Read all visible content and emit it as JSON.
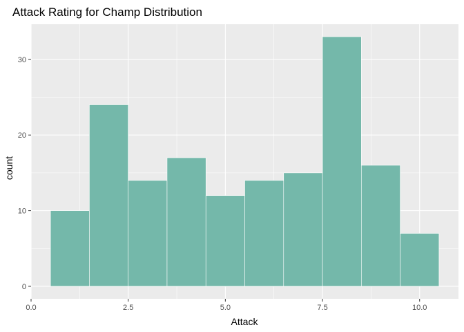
{
  "chart_data": {
    "type": "bar",
    "subtype": "histogram",
    "title": "Attack Rating for Champ Distribution",
    "xlabel": "Attack",
    "ylabel": "count",
    "bins": [
      {
        "x0": 0.5,
        "x1": 1.5,
        "count": 10
      },
      {
        "x0": 1.5,
        "x1": 2.5,
        "count": 24
      },
      {
        "x0": 2.5,
        "x1": 3.5,
        "count": 14
      },
      {
        "x0": 3.5,
        "x1": 4.5,
        "count": 17
      },
      {
        "x0": 4.5,
        "x1": 5.5,
        "count": 12
      },
      {
        "x0": 5.5,
        "x1": 6.5,
        "count": 14
      },
      {
        "x0": 6.5,
        "x1": 7.5,
        "count": 15
      },
      {
        "x0": 7.5,
        "x1": 8.5,
        "count": 33
      },
      {
        "x0": 8.5,
        "x1": 9.5,
        "count": 16
      },
      {
        "x0": 9.5,
        "x1": 10.5,
        "count": 7
      }
    ],
    "xlim": [
      0.0,
      11.0
    ],
    "ylim": [
      -1.65,
      34.65
    ],
    "x_ticks": [
      0.0,
      2.5,
      5.0,
      7.5,
      10.0
    ],
    "x_tick_labels": [
      "0.0",
      "2.5",
      "5.0",
      "7.5",
      "10.0"
    ],
    "x_minor_ticks": [
      1.25,
      3.75,
      6.25,
      8.75
    ],
    "y_ticks": [
      0,
      10,
      20,
      30
    ],
    "y_tick_labels": [
      "0",
      "10",
      "20",
      "30"
    ],
    "y_minor_ticks": [
      5,
      15,
      25
    ],
    "grid": true,
    "legend": "none",
    "colors": {
      "bar_fill": "#74b8aa",
      "bar_outline": "#ffffff",
      "panel_background": "#ebebeb",
      "gridline": "#ffffff"
    }
  }
}
